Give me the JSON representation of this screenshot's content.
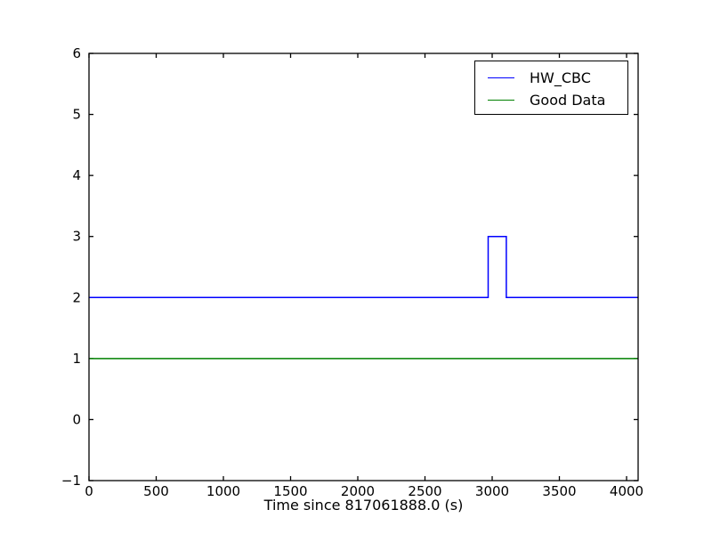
{
  "chart_data": {
    "type": "line",
    "title": "",
    "xlabel": "Time since 817061888.0 (s)",
    "ylabel": "",
    "xlim": [
      0,
      4086
    ],
    "ylim": [
      -1,
      6
    ],
    "xticks": [
      0,
      500,
      1000,
      1500,
      2000,
      2500,
      3000,
      3500,
      4000
    ],
    "xtick_labels": [
      "0",
      "500",
      "1000",
      "1500",
      "2000",
      "2500",
      "3000",
      "3500",
      "4000"
    ],
    "yticks": [
      -1,
      0,
      1,
      2,
      3,
      4,
      5,
      6
    ],
    "ytick_labels": [
      "−1",
      "0",
      "1",
      "2",
      "3",
      "4",
      "5",
      "6"
    ],
    "grid": false,
    "background_color": "#ffffff",
    "spine_color": "#000000",
    "legend": {
      "position": "upper right",
      "entries": [
        "HW_CBC",
        "Good Data"
      ]
    },
    "series": [
      {
        "name": "HW_CBC",
        "color": "#0000ff",
        "points": [
          [
            0,
            2
          ],
          [
            2970,
            2
          ],
          [
            2970,
            3
          ],
          [
            3105,
            3
          ],
          [
            3105,
            2
          ],
          [
            4080,
            2
          ]
        ]
      },
      {
        "name": "Good Data",
        "color": "#008000",
        "points": [
          [
            0,
            1
          ],
          [
            4080,
            1
          ]
        ]
      }
    ]
  }
}
